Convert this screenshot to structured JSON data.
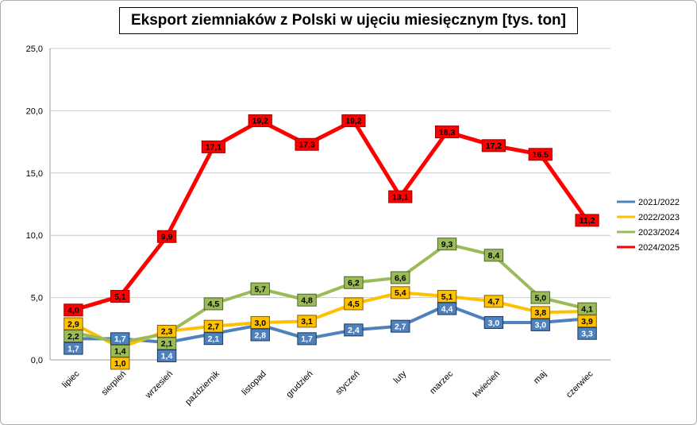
{
  "chart_data": {
    "type": "line",
    "title": "Eksport ziemniaków z Polski w ujęciu miesięcznym [tys. ton]",
    "categories": [
      "lipiec",
      "sierpień",
      "wrzesień",
      "październik",
      "listopad",
      "grudzień",
      "styczeń",
      "luty",
      "marzec",
      "kwiecień",
      "maj",
      "czerwiec"
    ],
    "series": [
      {
        "name": "2021/2022",
        "color": "#4f81bd",
        "label_border": "#17375e",
        "label_text": "#ffffff",
        "line_width": 4,
        "values": [
          1.7,
          1.7,
          1.4,
          2.1,
          2.8,
          1.7,
          2.4,
          2.7,
          4.4,
          3.0,
          3.0,
          3.3
        ]
      },
      {
        "name": "2022/2023",
        "color": "#ffc000",
        "label_border": "#806000",
        "label_text": "#000000",
        "line_width": 4,
        "values": [
          2.9,
          1.0,
          2.3,
          2.7,
          3.0,
          3.1,
          4.5,
          5.4,
          5.1,
          4.7,
          3.8,
          3.9
        ]
      },
      {
        "name": "2023/2024",
        "color": "#9bbb59",
        "label_border": "#4f6228",
        "label_text": "#000000",
        "line_width": 4,
        "values": [
          2.2,
          1.4,
          2.1,
          4.5,
          5.7,
          4.8,
          6.2,
          6.6,
          9.3,
          8.4,
          5.0,
          4.1
        ]
      },
      {
        "name": "2024/2025",
        "color": "#ff0000",
        "label_border": "#990000",
        "label_text": "#000000",
        "line_width": 5,
        "values": [
          4.0,
          5.1,
          9.9,
          17.1,
          19.2,
          17.3,
          19.2,
          13.1,
          18.3,
          17.2,
          16.5,
          11.2
        ]
      }
    ],
    "ylim": [
      0,
      25
    ],
    "ytick_step": 5,
    "ytick_labels": [
      "0,0",
      "5,0",
      "10,0",
      "15,0",
      "20,0",
      "25,0"
    ],
    "xlabel": "",
    "ylabel": "",
    "grid": true,
    "legend_position": "right",
    "colors": {
      "grid": "#c9c9c9",
      "axis": "#9c9c9c",
      "tick_text": "#000000",
      "legend_text": "#000000",
      "background": "#ffffff",
      "frame_border": "#adadad"
    }
  }
}
